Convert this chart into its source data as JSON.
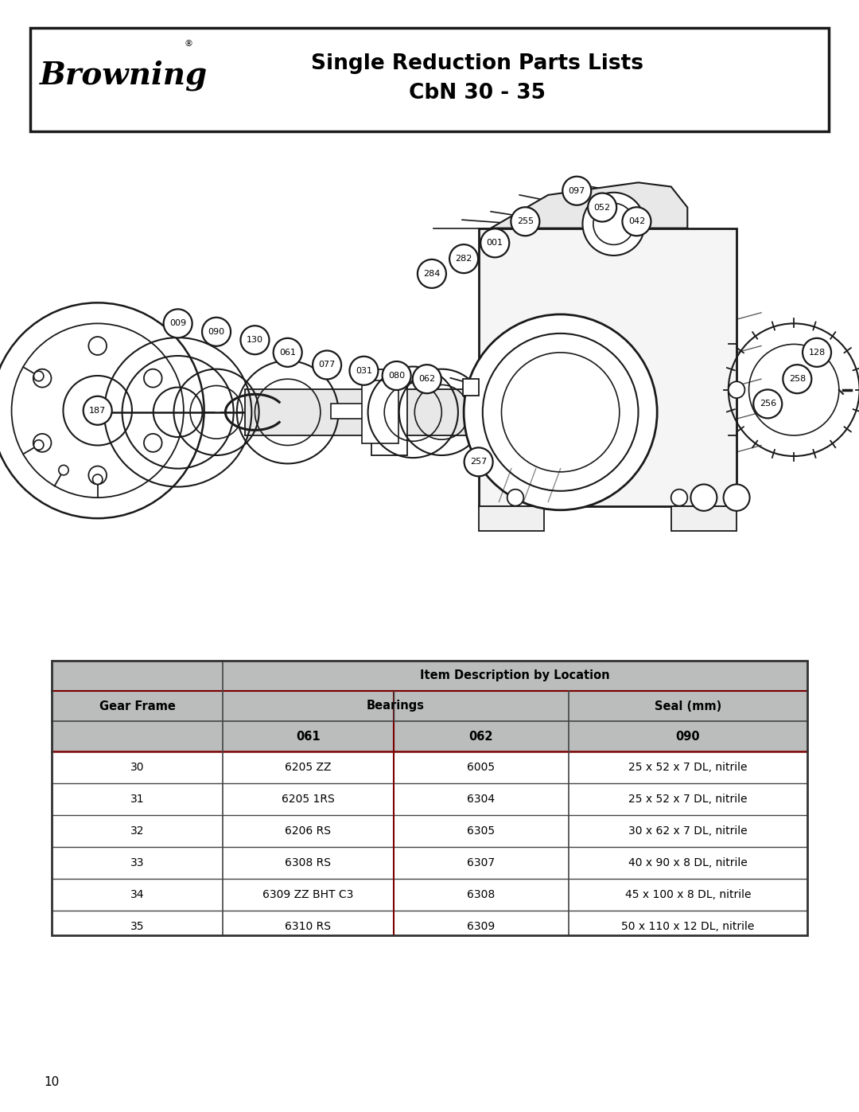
{
  "title_line1": "Single Reduction Parts Lists",
  "title_line2": "CbN 30 - 35",
  "brand": "Browning",
  "page_number": "10",
  "bg_color": "#ffffff",
  "header_border_color": "#1a1a1a",
  "table_header_bg": "#bbbcbc",
  "table_border_color": "#555555",
  "table_red_line": "#8B0000",
  "table_header_text": "Item Description by Location",
  "rows": [
    [
      "30",
      "6205 ZZ",
      "6005",
      "25 x 52 x 7 DL, nitrile"
    ],
    [
      "31",
      "6205 1RS",
      "6304",
      "25 x 52 x 7 DL, nitrile"
    ],
    [
      "32",
      "6206 RS",
      "6305",
      "30 x 62 x 7 DL, nitrile"
    ],
    [
      "33",
      "6308 RS",
      "6307",
      "40 x 90 x 8 DL, nitrile"
    ],
    [
      "34",
      "6309 ZZ BHT C3",
      "6308",
      "45 x 100 x 8 DL, nitrile"
    ],
    [
      "35",
      "6310 RS",
      "6309",
      "50 x 110 x 12 DL, nitrile"
    ]
  ],
  "labels": [
    [
      80,
      505,
      "187"
    ],
    [
      168,
      553,
      "009"
    ],
    [
      218,
      543,
      "090"
    ],
    [
      268,
      535,
      "130"
    ],
    [
      303,
      522,
      "061"
    ],
    [
      350,
      510,
      "077"
    ],
    [
      393,
      505,
      "031"
    ],
    [
      432,
      500,
      "080"
    ],
    [
      468,
      496,
      "062"
    ],
    [
      510,
      567,
      "284"
    ],
    [
      548,
      583,
      "282"
    ],
    [
      583,
      600,
      "001"
    ],
    [
      619,
      625,
      "255"
    ],
    [
      678,
      660,
      "097"
    ],
    [
      704,
      638,
      "052"
    ],
    [
      742,
      618,
      "042"
    ],
    [
      975,
      508,
      "128"
    ],
    [
      952,
      480,
      "258"
    ],
    [
      918,
      455,
      "256"
    ],
    [
      543,
      403,
      "257"
    ]
  ]
}
